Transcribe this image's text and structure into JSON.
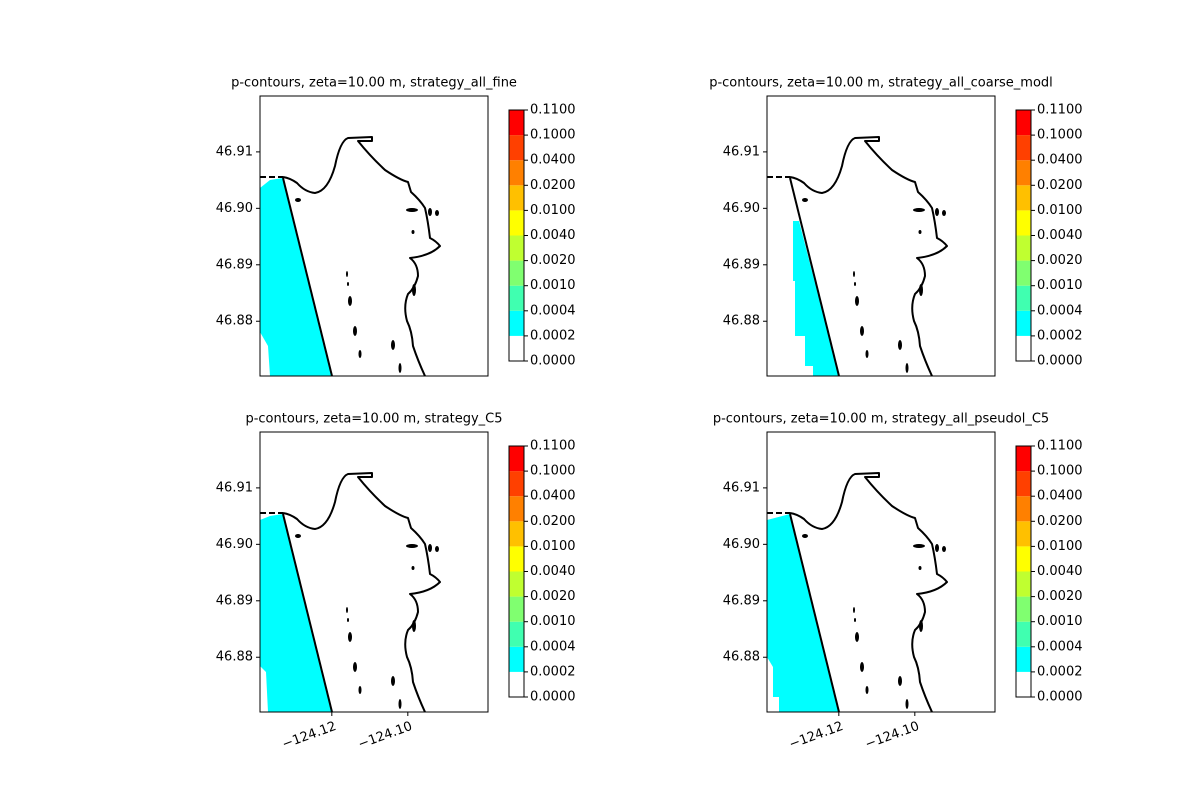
{
  "chart_data": [
    {
      "type": "contour",
      "title": "p-contours, zeta=10.00 m, strategy_all_fine",
      "xlim": [
        -124.1389,
        -124.0789
      ],
      "ylim": [
        46.8703,
        46.9199
      ],
      "yticks": [
        46.88,
        46.89,
        {
          "value": 46.9,
          "label": "46.90"
        },
        46.91
      ],
      "levels": [
        {
          "value": 0,
          "label": "0.0000"
        },
        {
          "value": 0.0002,
          "label": "0.0002"
        },
        {
          "value": 0.0004,
          "label": "0.0004"
        },
        {
          "value": 0.001,
          "label": "0.0010"
        },
        {
          "value": 0.002,
          "label": "0.0020"
        },
        {
          "value": 0.004,
          "label": "0.0040"
        },
        {
          "value": 0.01,
          "label": "0.0100"
        },
        {
          "value": 0.02,
          "label": "0.0200"
        },
        {
          "value": 0.04,
          "label": "0.0400"
        },
        {
          "value": 0.1,
          "label": "0.1000"
        },
        {
          "value": 0.11,
          "label": "0.1100"
        }
      ],
      "colors": [
        "#ffffff",
        "#00ffff",
        "#40ffb0",
        "#80ff70",
        "#c0ff30",
        "#ffff00",
        "#ffc000",
        "#ff8000",
        "#ff4000",
        "#ff0000"
      ]
    },
    {
      "type": "contour",
      "title": "p-contours, zeta=10.00 m, strategy_all_coarse_modl",
      "xlim": [
        -124.1389,
        -124.0789
      ],
      "ylim": [
        46.8703,
        46.9199
      ],
      "yticks": [
        46.88,
        46.89,
        {
          "value": 46.9,
          "label": "46.90"
        },
        46.91
      ],
      "levels": [
        {
          "value": 0,
          "label": "0.0000"
        },
        {
          "value": 0.0002,
          "label": "0.0002"
        },
        {
          "value": 0.0004,
          "label": "0.0004"
        },
        {
          "value": 0.001,
          "label": "0.0010"
        },
        {
          "value": 0.002,
          "label": "0.0020"
        },
        {
          "value": 0.004,
          "label": "0.0040"
        },
        {
          "value": 0.01,
          "label": "0.0100"
        },
        {
          "value": 0.02,
          "label": "0.0200"
        },
        {
          "value": 0.04,
          "label": "0.0400"
        },
        {
          "value": 0.1,
          "label": "0.1000"
        },
        {
          "value": 0.11,
          "label": "0.1100"
        }
      ],
      "colors": [
        "#ffffff",
        "#00ffff",
        "#40ffb0",
        "#80ff70",
        "#c0ff30",
        "#ffff00",
        "#ffc000",
        "#ff8000",
        "#ff4000",
        "#ff0000"
      ]
    },
    {
      "type": "contour",
      "title": "p-contours, zeta=10.00 m, strategy_C5",
      "xlim": [
        -124.1389,
        -124.0789
      ],
      "ylim": [
        46.8703,
        46.9199
      ],
      "yticks": [
        46.88,
        46.89,
        {
          "value": 46.9,
          "label": "46.90"
        },
        46.91
      ],
      "xticks": [
        {
          "value": -124.12,
          "label": "−124.12"
        },
        {
          "value": -124.1,
          "label": "−124.10"
        }
      ],
      "levels": [
        {
          "value": 0,
          "label": "0.0000"
        },
        {
          "value": 0.0002,
          "label": "0.0002"
        },
        {
          "value": 0.0004,
          "label": "0.0004"
        },
        {
          "value": 0.001,
          "label": "0.0010"
        },
        {
          "value": 0.002,
          "label": "0.0020"
        },
        {
          "value": 0.004,
          "label": "0.0040"
        },
        {
          "value": 0.01,
          "label": "0.0100"
        },
        {
          "value": 0.02,
          "label": "0.0200"
        },
        {
          "value": 0.04,
          "label": "0.0400"
        },
        {
          "value": 0.1,
          "label": "0.1000"
        },
        {
          "value": 0.11,
          "label": "0.1100"
        }
      ],
      "colors": [
        "#ffffff",
        "#00ffff",
        "#40ffb0",
        "#80ff70",
        "#c0ff30",
        "#ffff00",
        "#ffc000",
        "#ff8000",
        "#ff4000",
        "#ff0000"
      ]
    },
    {
      "type": "contour",
      "title": "p-contours, zeta=10.00 m, strategy_all_pseudol_C5",
      "xlim": [
        -124.1389,
        -124.0789
      ],
      "ylim": [
        46.8703,
        46.9199
      ],
      "yticks": [
        46.88,
        46.89,
        {
          "value": 46.9,
          "label": "46.90"
        },
        46.91
      ],
      "xticks": [
        {
          "value": -124.12,
          "label": "−124.12"
        },
        {
          "value": -124.1,
          "label": "−124.10"
        }
      ],
      "levels": [
        {
          "value": 0,
          "label": "0.0000"
        },
        {
          "value": 0.0002,
          "label": "0.0002"
        },
        {
          "value": 0.0004,
          "label": "0.0004"
        },
        {
          "value": 0.001,
          "label": "0.0010"
        },
        {
          "value": 0.002,
          "label": "0.0020"
        },
        {
          "value": 0.004,
          "label": "0.0040"
        },
        {
          "value": 0.01,
          "label": "0.0100"
        },
        {
          "value": 0.02,
          "label": "0.0200"
        },
        {
          "value": 0.04,
          "label": "0.0400"
        },
        {
          "value": 0.1,
          "label": "0.1000"
        },
        {
          "value": 0.11,
          "label": "0.1100"
        }
      ],
      "colors": [
        "#ffffff",
        "#00ffff",
        "#40ffb0",
        "#80ff70",
        "#c0ff30",
        "#ffff00",
        "#ffc000",
        "#ff8000",
        "#ff4000",
        "#ff0000"
      ]
    }
  ]
}
